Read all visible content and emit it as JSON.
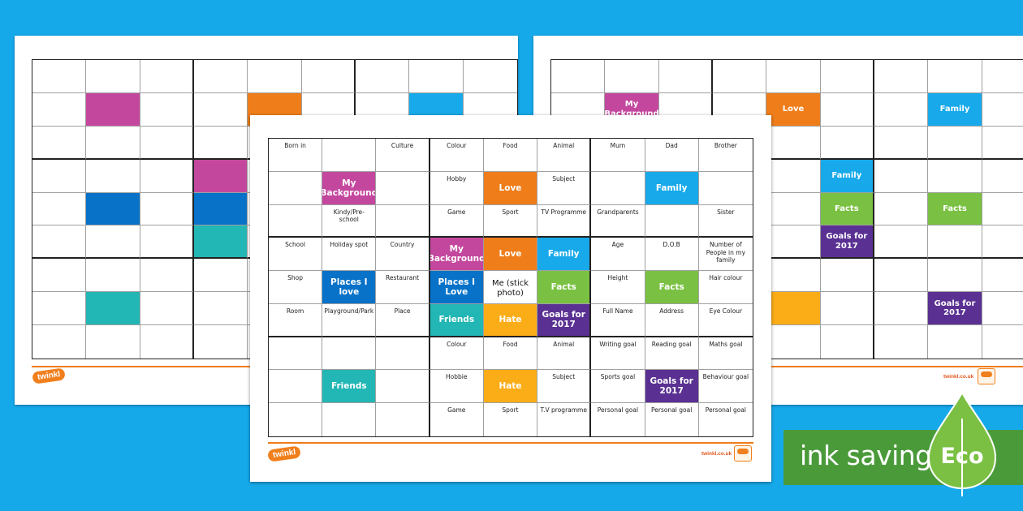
{
  "colors": {
    "background": "#16a9ea",
    "my_background": "#c4479e",
    "love": "#ef7d1a",
    "family": "#18a9ea",
    "places": "#0772c8",
    "me": "#ffffff",
    "facts": "#7ac143",
    "friends": "#22b6b4",
    "hate": "#fbad18",
    "goals": "#5a3192",
    "eco_banner": "#4a9a3a",
    "eco_leaf": "#7bc043",
    "brand_orange": "#f07f1c"
  },
  "front_sheet": {
    "cells": [
      [
        {
          "text": "Born in"
        },
        {
          "text": ""
        },
        {
          "text": "Culture"
        },
        {
          "text": "Colour"
        },
        {
          "text": "Food"
        },
        {
          "text": "Animal"
        },
        {
          "text": "Mum"
        },
        {
          "text": "Dad"
        },
        {
          "text": "Brother"
        }
      ],
      [
        {
          "text": ""
        },
        {
          "text": "My Background",
          "color": "#c4479e"
        },
        {
          "text": ""
        },
        {
          "text": "Hobby"
        },
        {
          "text": "Love",
          "color": "#ef7d1a"
        },
        {
          "text": "Subject"
        },
        {
          "text": ""
        },
        {
          "text": "Family",
          "color": "#18a9ea"
        },
        {
          "text": ""
        }
      ],
      [
        {
          "text": ""
        },
        {
          "text": "Kindy/Pre-school"
        },
        {
          "text": ""
        },
        {
          "text": "Game"
        },
        {
          "text": "Sport"
        },
        {
          "text": "TV Programme"
        },
        {
          "text": "Grandparents"
        },
        {
          "text": ""
        },
        {
          "text": "Sister"
        }
      ],
      [
        {
          "text": "School"
        },
        {
          "text": "Holiday spot"
        },
        {
          "text": "Country"
        },
        {
          "text": "My Background",
          "color": "#c4479e"
        },
        {
          "text": "Love",
          "color": "#ef7d1a"
        },
        {
          "text": "Family",
          "color": "#18a9ea"
        },
        {
          "text": "Age"
        },
        {
          "text": "D.O.B"
        },
        {
          "text": "Number of People in my family"
        }
      ],
      [
        {
          "text": "Shop"
        },
        {
          "text": "Places I love",
          "color": "#0772c8"
        },
        {
          "text": "Restaurant"
        },
        {
          "text": "Places I Love",
          "color": "#0772c8"
        },
        {
          "text": "Me (stick photo)",
          "center": true
        },
        {
          "text": "Facts",
          "color": "#7ac143"
        },
        {
          "text": "Height"
        },
        {
          "text": "Facts",
          "color": "#7ac143"
        },
        {
          "text": "Hair colour"
        }
      ],
      [
        {
          "text": "Room"
        },
        {
          "text": "Playground/Park"
        },
        {
          "text": "Place"
        },
        {
          "text": "Friends",
          "color": "#22b6b4"
        },
        {
          "text": "Hate",
          "color": "#fbad18"
        },
        {
          "text": "Goals for 2017",
          "color": "#5a3192"
        },
        {
          "text": "Full Name"
        },
        {
          "text": "Address"
        },
        {
          "text": "Eye Colour"
        }
      ],
      [
        {
          "text": ""
        },
        {
          "text": ""
        },
        {
          "text": ""
        },
        {
          "text": "Colour"
        },
        {
          "text": "Food"
        },
        {
          "text": "Animal"
        },
        {
          "text": "Writing goal"
        },
        {
          "text": "Reading goal"
        },
        {
          "text": "Maths goal"
        }
      ],
      [
        {
          "text": ""
        },
        {
          "text": "Friends",
          "color": "#22b6b4"
        },
        {
          "text": ""
        },
        {
          "text": "Hobbie"
        },
        {
          "text": "Hate",
          "color": "#fbad18"
        },
        {
          "text": "Subject"
        },
        {
          "text": "Sports goal"
        },
        {
          "text": "Goals for 2017",
          "color": "#5a3192"
        },
        {
          "text": "Behaviour goal"
        }
      ],
      [
        {
          "text": ""
        },
        {
          "text": ""
        },
        {
          "text": ""
        },
        {
          "text": "Game"
        },
        {
          "text": "Sport"
        },
        {
          "text": "T.V programme"
        },
        {
          "text": "Personal goal"
        },
        {
          "text": "Personal goal"
        },
        {
          "text": "Personal goal"
        }
      ]
    ],
    "logo": "twinkl",
    "site": "twinkl.co.uk"
  },
  "left_sheet": {
    "cells": [
      [
        {},
        {},
        {},
        {},
        {},
        {},
        {},
        {},
        {}
      ],
      [
        {},
        {
          "color": "#c4479e"
        },
        {},
        {},
        {
          "color": "#ef7d1a"
        },
        {},
        {},
        {
          "color": "#18a9ea"
        },
        {}
      ],
      [
        {},
        {},
        {},
        {},
        {},
        {},
        {},
        {},
        {}
      ],
      [
        {},
        {},
        {},
        {
          "color": "#c4479e"
        },
        {},
        {},
        {},
        {},
        {}
      ],
      [
        {},
        {
          "color": "#0772c8"
        },
        {},
        {
          "color": "#0772c8"
        },
        {},
        {},
        {},
        {},
        {}
      ],
      [
        {},
        {},
        {},
        {
          "color": "#22b6b4"
        },
        {},
        {},
        {},
        {},
        {}
      ],
      [
        {},
        {},
        {},
        {},
        {},
        {},
        {},
        {},
        {}
      ],
      [
        {},
        {
          "color": "#22b6b4"
        },
        {},
        {},
        {},
        {},
        {},
        {},
        {}
      ],
      [
        {},
        {},
        {},
        {},
        {},
        {},
        {},
        {},
        {}
      ]
    ],
    "logo": "twinkl"
  },
  "right_sheet": {
    "cells": [
      [
        {},
        {},
        {},
        {},
        {},
        {},
        {},
        {},
        {}
      ],
      [
        {},
        {
          "text": "My Background",
          "color": "#c4479e"
        },
        {},
        {},
        {
          "text": "Love",
          "color": "#ef7d1a"
        },
        {},
        {},
        {
          "text": "Family",
          "color": "#18a9ea"
        },
        {}
      ],
      [
        {},
        {},
        {},
        {},
        {},
        {},
        {},
        {},
        {}
      ],
      [
        {},
        {},
        {},
        {},
        {},
        {
          "text": "Family",
          "color": "#18a9ea"
        },
        {},
        {},
        {}
      ],
      [
        {},
        {},
        {},
        {},
        {},
        {
          "text": "Facts",
          "color": "#7ac143"
        },
        {},
        {
          "text": "Facts",
          "color": "#7ac143"
        },
        {}
      ],
      [
        {},
        {},
        {},
        {},
        {},
        {
          "text": "Goals for 2017",
          "color": "#5a3192"
        },
        {},
        {},
        {}
      ],
      [
        {},
        {},
        {},
        {},
        {},
        {},
        {},
        {},
        {}
      ],
      [
        {},
        {},
        {},
        {},
        {
          "color": "#fbad18"
        },
        {},
        {},
        {
          "text": "Goals for 2017",
          "color": "#5a3192"
        },
        {}
      ],
      [
        {},
        {},
        {},
        {},
        {},
        {},
        {},
        {},
        {}
      ]
    ],
    "logo": "twinkl",
    "site": "twinkl.co.uk"
  },
  "eco_banner": {
    "label": "ink saving",
    "badge": "Eco"
  }
}
